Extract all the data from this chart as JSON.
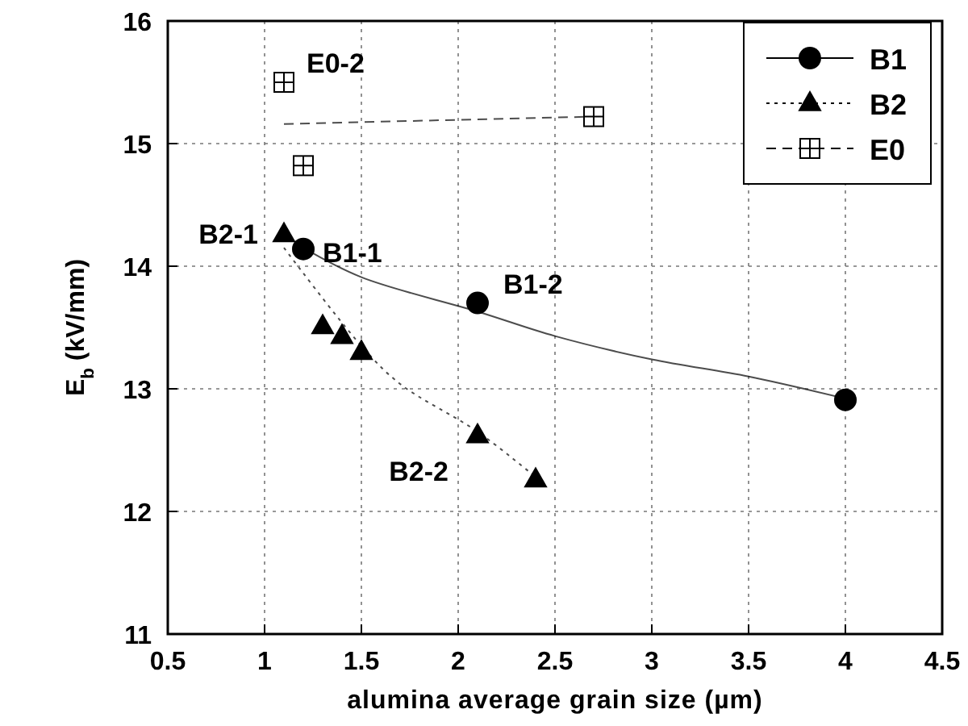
{
  "chart_data": {
    "type": "scatter",
    "xlabel": "alumina average grain size (µm)",
    "ylabel": "E$_{b}$ (kV/mm)",
    "xlim": [
      0.5,
      4.5
    ],
    "xticks": [
      0.5,
      1,
      1.5,
      2,
      2.5,
      3,
      3.5,
      4,
      4.5
    ],
    "ylim": [
      11,
      16
    ],
    "yticks": [
      11,
      12,
      13,
      14,
      15,
      16
    ],
    "grid": true,
    "legend": "top right",
    "series": [
      {
        "name": "B1",
        "marker": "circle",
        "color": "#000000",
        "x": [
          1.2,
          2.1,
          4.0
        ],
        "values": [
          14.14,
          13.7,
          12.91
        ]
      },
      {
        "type": "line",
        "line_style": "solid",
        "color": "#000000",
        "x": [
          1.2,
          1.5,
          2.1,
          2.5,
          3,
          3.5,
          4.0
        ],
        "values": [
          14.15,
          13.91,
          13.63,
          13.43,
          13.24,
          13.1,
          12.92
        ]
      },
      {
        "name": "B2",
        "marker": "triangle",
        "color": "#000000",
        "x": [
          1.1,
          1.3,
          1.4,
          1.5,
          2.1,
          2.4
        ],
        "values": [
          14.26,
          13.51,
          13.43,
          13.3,
          12.62,
          12.26
        ]
      },
      {
        "type": "line",
        "line_style": "dotted",
        "color": "#000000",
        "x": [
          1.1,
          1.5,
          1.7,
          2.1,
          2.4
        ],
        "values": [
          14.15,
          13.35,
          13.04,
          12.65,
          12.28
        ]
      },
      {
        "name": "E0",
        "marker": "square",
        "color": "#000000",
        "x": [
          1.1,
          1.2,
          2.7
        ],
        "values": [
          15.5,
          14.82,
          15.22
        ]
      },
      {
        "type": "line",
        "line_style": "dashed",
        "color": "#000000",
        "x": [
          1.1,
          2.7
        ],
        "values": [
          15.16,
          15.22
        ]
      }
    ],
    "annotations": [
      {
        "text": "E0-2",
        "x": 1.1,
        "y": 15.5
      },
      {
        "text": "B2-1",
        "x": 1.1,
        "y": 14.26
      },
      {
        "text": "B1-1",
        "x": 1.2,
        "y": 14.14
      },
      {
        "text": "B1-2",
        "x": 2.1,
        "y": 13.7
      },
      {
        "text": "B2-2",
        "x": 2.1,
        "y": 12.62
      }
    ]
  }
}
